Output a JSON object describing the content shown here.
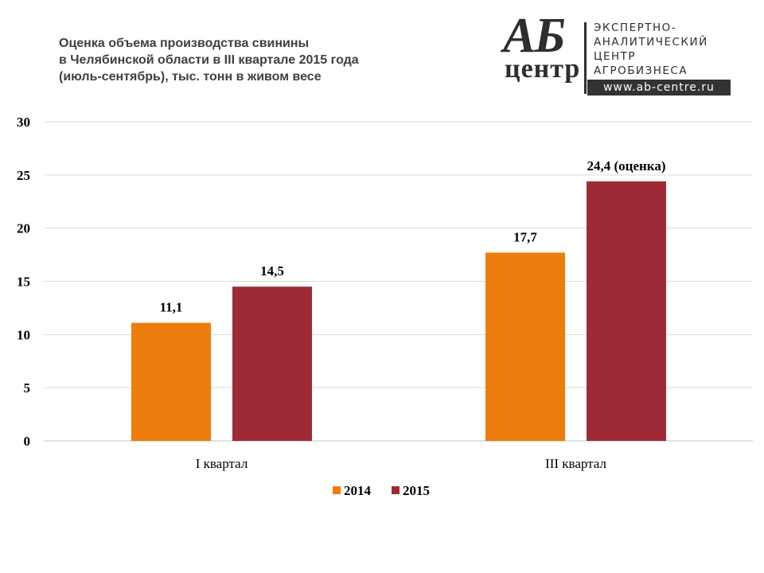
{
  "header": {
    "title_lines": [
      "Оценка объема производства свинины",
      "в Челябинской области в III квартале 2015 года",
      "(июль-сентябрь), тыс. тонн в живом весе"
    ]
  },
  "logo": {
    "mark_top": "АБ",
    "mark_bottom": "центр",
    "lines": [
      "ЭКСПЕРТНО-",
      "АНАЛИТИЧЕСКИЙ",
      "ЦЕНТР",
      "АГРОБИЗНЕСА"
    ],
    "url": "www.ab-centre.ru"
  },
  "colors": {
    "series_2014": "#ee7d0e",
    "series_2015": "#9e2a35",
    "grid": "#d9d9d9"
  },
  "chart_data": {
    "type": "bar",
    "title": "Оценка объема производства свинины в Челябинской области в III квартале 2015 года (июль-сентябрь), тыс. тонн в живом весе",
    "categories": [
      "I квартал",
      "III  квартал"
    ],
    "series": [
      {
        "name": "2014",
        "values": [
          11.1,
          17.7
        ],
        "labels": [
          "11,1",
          "17,7"
        ]
      },
      {
        "name": "2015",
        "values": [
          14.5,
          24.4
        ],
        "labels": [
          "14,5",
          "24,4 (оценка)"
        ]
      }
    ],
    "ylim": [
      0,
      30
    ],
    "yticks": [
      0,
      5,
      10,
      15,
      20,
      25,
      30
    ],
    "grid": true,
    "legend": "bottom-center",
    "xlabel": "",
    "ylabel": ""
  }
}
